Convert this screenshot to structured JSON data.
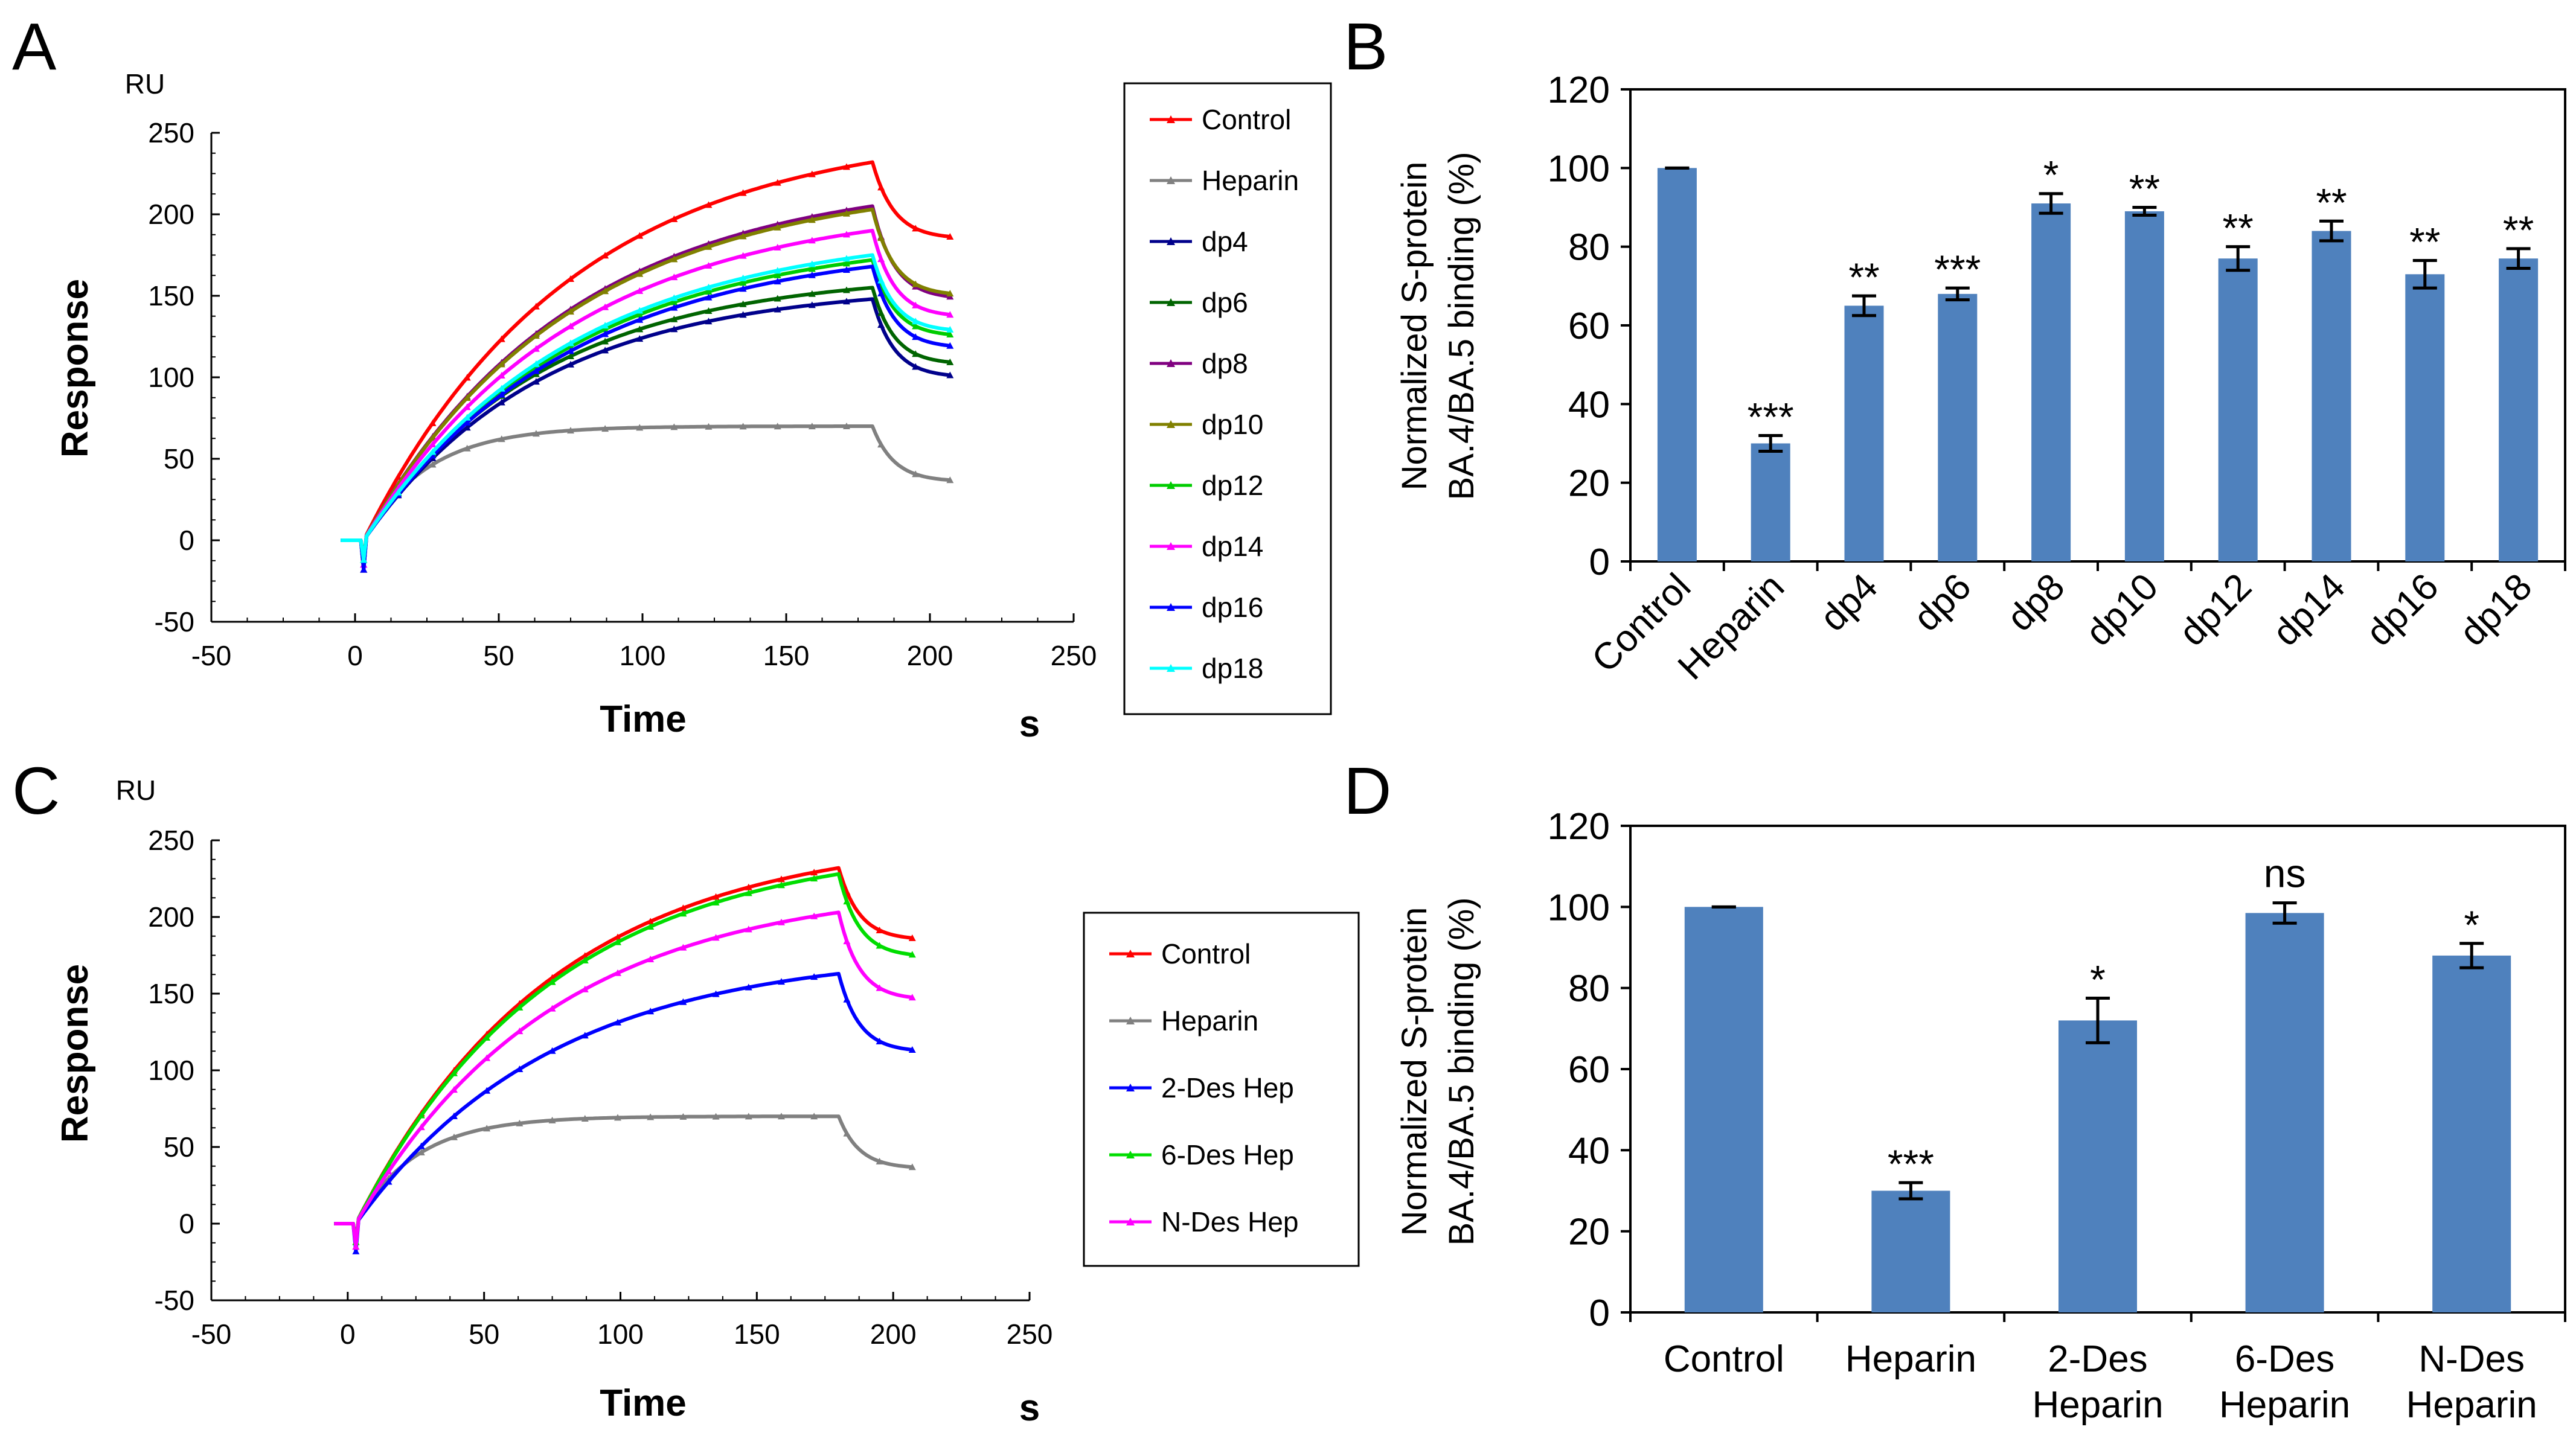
{
  "chart_data": [
    {
      "panel": "A",
      "type": "line",
      "title": "",
      "xlabel": "Time",
      "x_unit": "s",
      "ylabel": "Response",
      "y_unit": "RU",
      "xlim": [
        -50,
        250
      ],
      "ylim": [
        -50,
        250
      ],
      "xticks": [
        -50,
        0,
        50,
        100,
        150,
        200,
        250
      ],
      "yticks": [
        -50,
        0,
        50,
        100,
        150,
        200,
        250
      ],
      "legend_position": "right",
      "series": [
        {
          "name": "Control",
          "color": "#ff0000",
          "peak": 232,
          "end": 185
        },
        {
          "name": "Heparin",
          "color": "#808080",
          "peak": 70,
          "end": 36
        },
        {
          "name": "dp4",
          "color": "#00008b",
          "peak": 148,
          "end": 100
        },
        {
          "name": "dp6",
          "color": "#006400",
          "peak": 155,
          "end": 108
        },
        {
          "name": "dp8",
          "color": "#800080",
          "peak": 205,
          "end": 148
        },
        {
          "name": "dp10",
          "color": "#808000",
          "peak": 203,
          "end": 150
        },
        {
          "name": "dp12",
          "color": "#00cc00",
          "peak": 172,
          "end": 125
        },
        {
          "name": "dp14",
          "color": "#ff00ff",
          "peak": 190,
          "end": 137
        },
        {
          "name": "dp16",
          "color": "#0000ff",
          "peak": 168,
          "end": 118
        },
        {
          "name": "dp18",
          "color": "#00ffff",
          "peak": 175,
          "end": 128
        }
      ]
    },
    {
      "panel": "B",
      "type": "bar",
      "ylabel": [
        "Normalized S-protein",
        "BA.4/BA.5  binding (%)"
      ],
      "ylim": [
        0,
        120
      ],
      "yticks": [
        0,
        20,
        40,
        60,
        80,
        100,
        120
      ],
      "bar_color": "#4f81bd",
      "categories": [
        "Control",
        "Heparin",
        "dp4",
        "dp6",
        "dp8",
        "dp10",
        "dp12",
        "dp14",
        "dp16",
        "dp18"
      ],
      "values": [
        100,
        30,
        65,
        68,
        91,
        89,
        77,
        84,
        73,
        77
      ],
      "errors": [
        0,
        2,
        2.5,
        1.5,
        2.5,
        1,
        3,
        2.5,
        3.5,
        2.5
      ],
      "significance": [
        "",
        "***",
        "**",
        "***",
        "*",
        "**",
        "**",
        "**",
        "**",
        "**"
      ]
    },
    {
      "panel": "C",
      "type": "line",
      "title": "",
      "xlabel": "Time",
      "x_unit": "s",
      "ylabel": "Response",
      "y_unit": "RU",
      "xlim": [
        -50,
        250
      ],
      "ylim": [
        -50,
        250
      ],
      "xticks": [
        -50,
        0,
        50,
        100,
        150,
        200,
        250
      ],
      "yticks": [
        -50,
        0,
        50,
        100,
        150,
        200,
        250
      ],
      "legend_position": "right",
      "series": [
        {
          "name": "Control",
          "color": "#ff0000",
          "peak": 232,
          "end": 185
        },
        {
          "name": "Heparin",
          "color": "#808080",
          "peak": 70,
          "end": 36
        },
        {
          "name": "2-Des Hep",
          "color": "#0000ff",
          "peak": 163,
          "end": 112
        },
        {
          "name": "6-Des Hep",
          "color": "#00dd00",
          "peak": 228,
          "end": 174
        },
        {
          "name": "N-Des Hep",
          "color": "#ff00ff",
          "peak": 203,
          "end": 146
        }
      ]
    },
    {
      "panel": "D",
      "type": "bar",
      "ylabel": [
        "Normalized S-protein",
        "BA.4/BA.5  binding (%)"
      ],
      "ylim": [
        0,
        120
      ],
      "yticks": [
        0,
        20,
        40,
        60,
        80,
        100,
        120
      ],
      "bar_color": "#4f81bd",
      "categories": [
        [
          "Control"
        ],
        [
          "Heparin"
        ],
        [
          "2-Des",
          "Heparin"
        ],
        [
          "6-Des",
          "Heparin"
        ],
        [
          "N-Des",
          "Heparin"
        ]
      ],
      "values": [
        100,
        30,
        72,
        98.5,
        88
      ],
      "errors": [
        0,
        2,
        5.5,
        2.5,
        3
      ],
      "significance": [
        "",
        "***",
        "*",
        "ns",
        "*"
      ]
    }
  ]
}
